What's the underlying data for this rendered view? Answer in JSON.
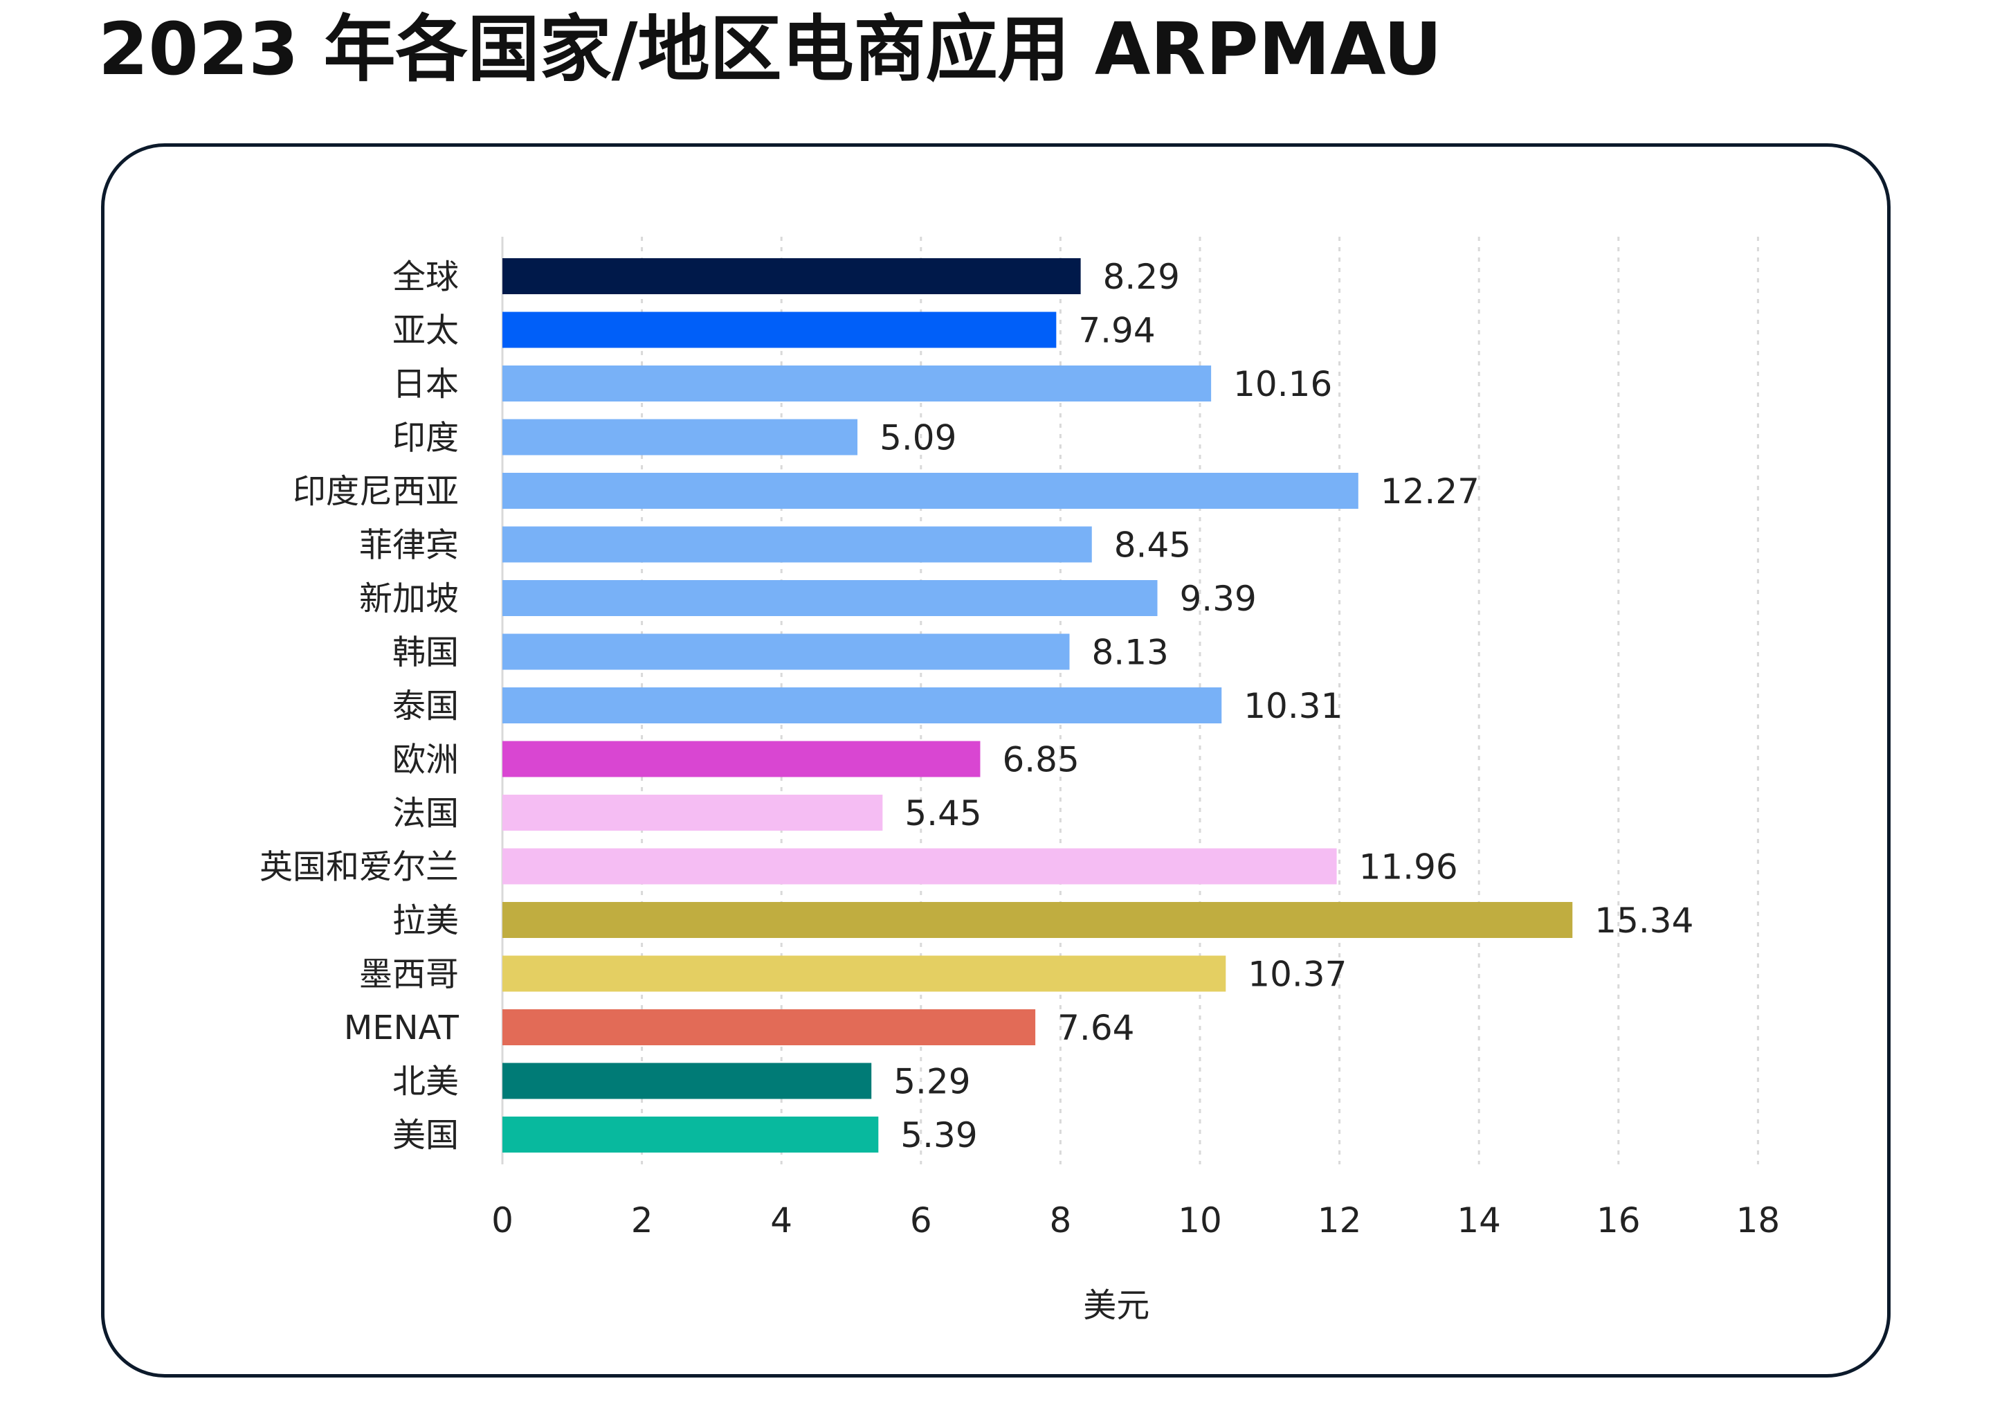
{
  "title": "2023 年各国家/地区电商应用 ARPMAU",
  "chart_data": {
    "type": "bar",
    "orientation": "horizontal",
    "categories": [
      "全球",
      "亚太",
      "日本",
      "印度",
      "印度尼西亚",
      "菲律宾",
      "新加坡",
      "韩国",
      "泰国",
      "欧洲",
      "法国",
      "英国和爱尔兰",
      "拉美",
      "墨西哥",
      "MENAT",
      "北美",
      "美国"
    ],
    "values": [
      8.29,
      7.94,
      10.16,
      5.09,
      12.27,
      8.45,
      9.39,
      8.13,
      10.31,
      6.85,
      5.45,
      11.96,
      15.34,
      10.37,
      7.64,
      5.29,
      5.39
    ],
    "value_labels": [
      "8.29",
      "7.94",
      "10.16",
      "5.09",
      "12.27",
      "8.45",
      "9.39",
      "8.13",
      "10.31",
      "6.85",
      "5.45",
      "11.96",
      "15.34",
      "10.37",
      "7.64",
      "5.29",
      "5.39"
    ],
    "colors": [
      "#00194a",
      "#005ff9",
      "#78b1f7",
      "#78b1f7",
      "#78b1f7",
      "#78b1f7",
      "#78b1f7",
      "#78b1f7",
      "#78b1f7",
      "#d946d2",
      "#f5bdf3",
      "#f5bdf3",
      "#c0ad40",
      "#e4cf62",
      "#e26b57",
      "#007b76",
      "#08b99e"
    ],
    "xlim": [
      0,
      18
    ],
    "xticks": [
      "0",
      "2",
      "4",
      "6",
      "8",
      "10",
      "12",
      "14",
      "16",
      "18"
    ],
    "xlabel": "美元",
    "ylabel": "",
    "grid": "vertical-dotted",
    "legend": "none"
  }
}
